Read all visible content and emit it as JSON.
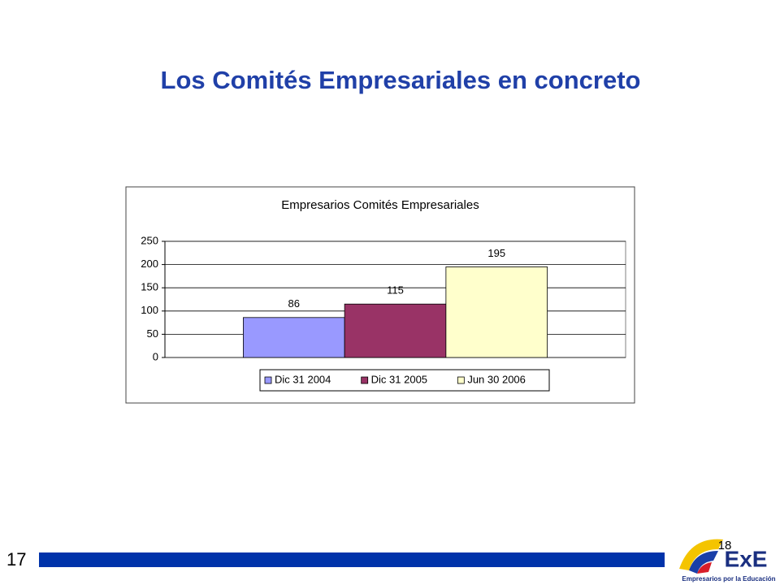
{
  "slide": {
    "title": "Los Comités Empresariales en concreto",
    "page_number": "17",
    "overlay_number": "18",
    "logo": {
      "mark": "ExE",
      "tagline": "Empresarios por la Educación"
    }
  },
  "chart_data": {
    "type": "bar",
    "title": "Empresarios Comités Empresariales",
    "categories": [
      null
    ],
    "series": [
      {
        "name": "Dic 31 2004",
        "color": "#9999ff",
        "values": [
          86
        ]
      },
      {
        "name": "Dic 31 2005",
        "color": "#993366",
        "values": [
          115
        ]
      },
      {
        "name": "Jun 30 2006",
        "color": "#ffffcc",
        "values": [
          195
        ]
      }
    ],
    "ylim": [
      0,
      250
    ],
    "yticks": [
      0,
      50,
      100,
      150,
      200,
      250
    ],
    "grid": true,
    "legend": "bottom"
  }
}
